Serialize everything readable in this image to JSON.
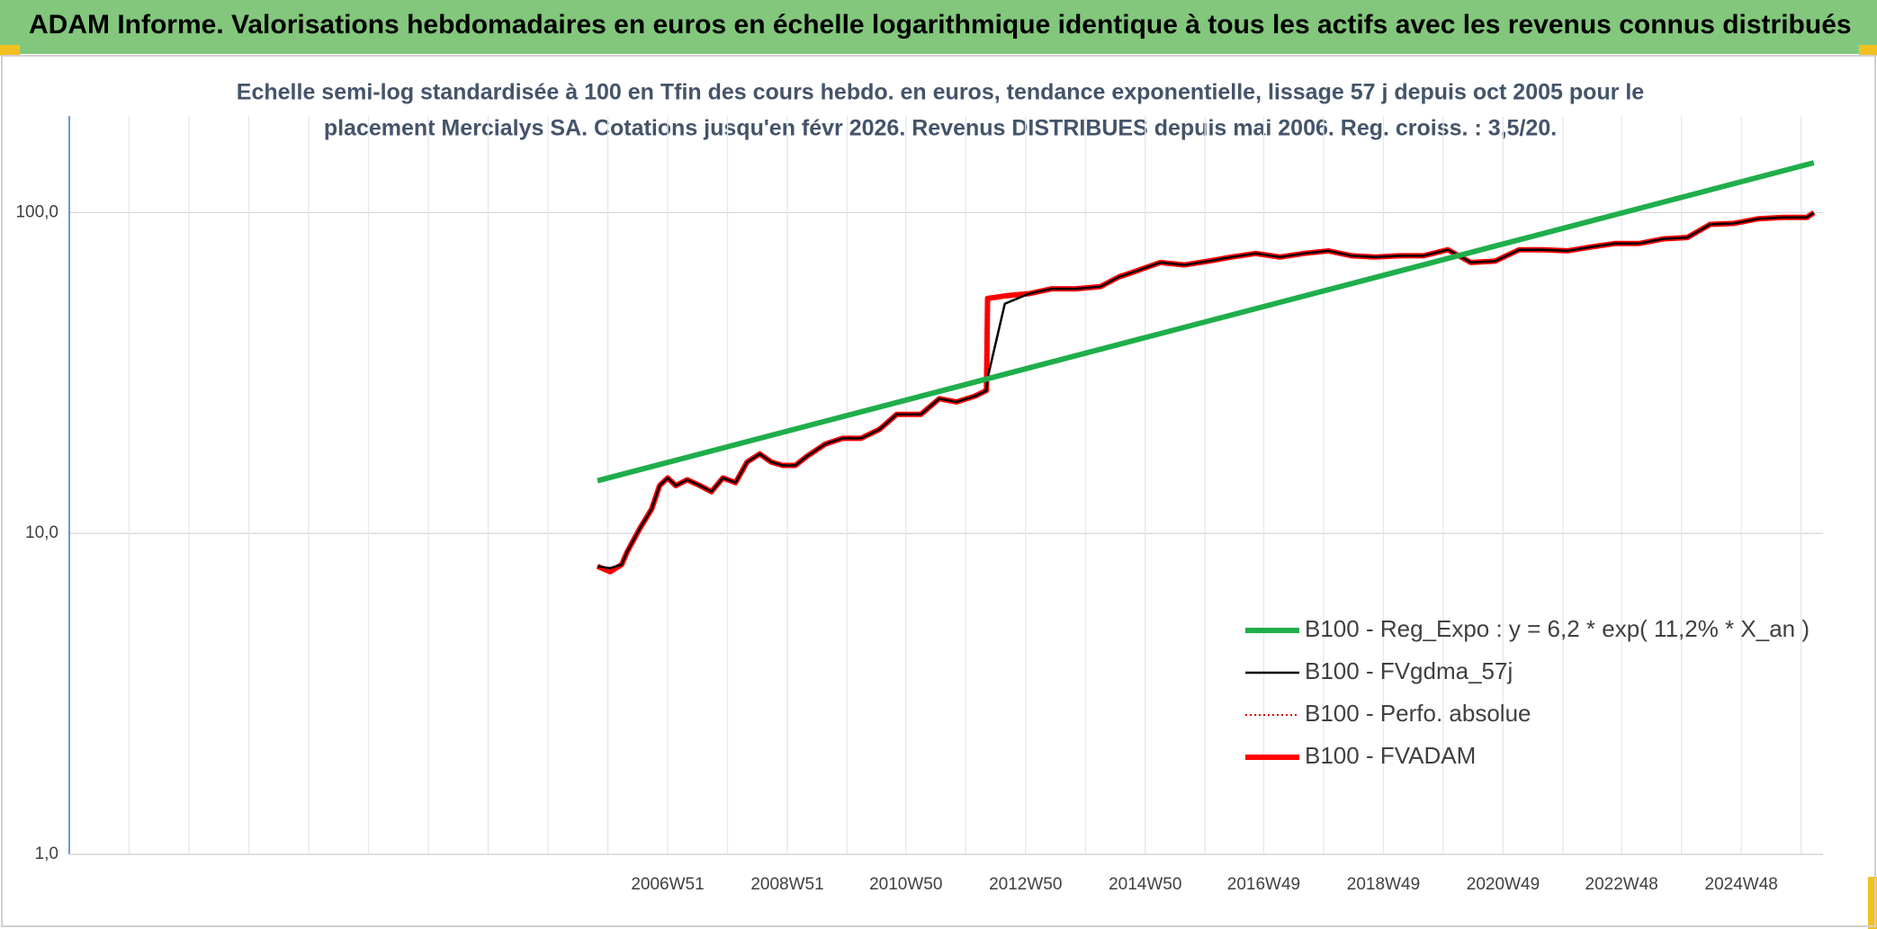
{
  "chart_data": {
    "type": "line",
    "title": "ADAM Informe. Valorisations hebdomadaires en euros en échelle logarithmique identique à tous les actifs avec les revenus connus distribués",
    "subtitle": [
      "Echelle semi-log standardisée à 100 en Tfin des cours hebdo. en euros, tendance exponentielle, lissage 57 j depuis oct 2005 pour le",
      "placement Mercialys SA. Cotations jusqu'en févr 2026. Revenus DISTRIBUES depuis mai 2006. Reg. croiss. : 3,5/20."
    ],
    "log_y": true,
    "grid": true,
    "legend": "lower right",
    "ylim": [
      1,
      200
    ],
    "yticks": [
      {
        "value": 1,
        "label": "1,0"
      },
      {
        "value": 10,
        "label": "10,0"
      },
      {
        "value": 100,
        "label": "100,0"
      }
    ],
    "xlim": [
      "1996W51",
      "2026W15"
    ],
    "xticks": [
      "2006W51",
      "2008W51",
      "2010W50",
      "2012W50",
      "2014W50",
      "2016W49",
      "2018W49",
      "2020W49",
      "2022W48",
      "2024W48"
    ],
    "xgrid": [
      "1997W51",
      "1998W51",
      "1999W51",
      "2000W51",
      "2001W51",
      "2002W51",
      "2003W51",
      "2004W51",
      "2005W51",
      "2007W51",
      "2009W51",
      "2011W50",
      "2013W50",
      "2015W50",
      "2017W49",
      "2019W49",
      "2021W49",
      "2023W48",
      "2025W48"
    ],
    "x": [
      "2005W42",
      "2006W01",
      "2006W11",
      "2006W16",
      "2006W27",
      "2006W37",
      "2006W44",
      "2006W51",
      "2007W06",
      "2007W16",
      "2007W27",
      "2007W37",
      "2007W47",
      "2008W06",
      "2008W16",
      "2008W27",
      "2008W37",
      "2008W47",
      "2009W06",
      "2009W16",
      "2009W32",
      "2009W47",
      "2010W11",
      "2010W27",
      "2010W42",
      "2011W11",
      "2011W27",
      "2011W42",
      "2012W06",
      "2012W16",
      "2012W17",
      "2012W32",
      "2013W01",
      "2013W21",
      "2013W42",
      "2014W11",
      "2014W27",
      "2014W42",
      "2015W11",
      "2015W32",
      "2016W01",
      "2016W21",
      "2016W42",
      "2017W11",
      "2017W32",
      "2018W01",
      "2018W21",
      "2018W42",
      "2019W11",
      "2019W32",
      "2020W01",
      "2020W21",
      "2020W42",
      "2021W11",
      "2021W32",
      "2022W01",
      "2022W21",
      "2022W42",
      "2023W11",
      "2023W32",
      "2024W01",
      "2024W21",
      "2024W42",
      "2025W11",
      "2025W32",
      "2026W01",
      "2026W07"
    ],
    "series": [
      {
        "name": "B100 - Reg_Expo : y = 6,2 * exp( 11,2% *  X_an )",
        "color": "#1fae4b",
        "linestyle": "solid",
        "x": [
          "2005W42",
          "2026W07"
        ],
        "values": [
          14.6,
          143
        ]
      },
      {
        "name": "B100 - FVgdma_57j",
        "color": "#000000",
        "linestyle": "solid",
        "values": [
          7.9,
          7.8,
          8.0,
          8.8,
          10.4,
          11.9,
          14.1,
          14.9,
          14.1,
          14.7,
          14.1,
          13.5,
          14.9,
          14.4,
          16.7,
          17.7,
          16.7,
          16.3,
          16.3,
          17.4,
          19.0,
          19.8,
          19.8,
          21.1,
          23.5,
          23.5,
          26.3,
          25.7,
          26.8,
          27.9,
          30.5,
          52.0,
          55.9,
          57.9,
          57.9,
          58.8,
          63.0,
          65.7,
          69.9,
          68.7,
          70.6,
          72.7,
          74.6,
          72.7,
          74.6,
          76.0,
          73.4,
          72.7,
          73.4,
          73.4,
          76.6,
          69.9,
          70.6,
          76.6,
          76.6,
          76.0,
          78.1,
          80.1,
          80.1,
          82.8,
          83.6,
          91.9,
          92.6,
          95.7,
          96.6,
          96.6,
          100
        ]
      },
      {
        "name": "B100 - Perfo. absolue",
        "color": "#e00000",
        "linestyle": "dotted",
        "values": [
          7.9,
          7.6,
          8.0,
          8.8,
          10.4,
          11.9,
          14.1,
          14.9,
          14.1,
          14.7,
          14.1,
          13.5,
          14.9,
          14.4,
          16.7,
          17.7,
          16.7,
          16.3,
          16.3,
          17.4,
          19.0,
          19.8,
          19.8,
          21.1,
          23.5,
          23.5,
          26.3,
          25.7,
          26.8,
          27.9,
          54.0,
          55.0,
          55.9,
          57.9,
          57.9,
          58.8,
          63.0,
          65.7,
          69.9,
          68.7,
          70.6,
          72.7,
          74.6,
          72.7,
          74.6,
          76.0,
          73.4,
          72.7,
          73.4,
          73.4,
          76.6,
          69.9,
          70.6,
          76.6,
          76.6,
          76.0,
          78.1,
          80.1,
          80.1,
          82.8,
          83.6,
          91.9,
          92.6,
          95.7,
          96.6,
          96.6,
          100
        ]
      },
      {
        "name": "B100 - FVADAM",
        "color": "#ff0000",
        "linestyle": "solid",
        "values": [
          7.9,
          7.6,
          8.0,
          8.8,
          10.4,
          11.9,
          14.1,
          14.9,
          14.1,
          14.7,
          14.1,
          13.5,
          14.9,
          14.4,
          16.7,
          17.7,
          16.7,
          16.3,
          16.3,
          17.4,
          19.0,
          19.8,
          19.8,
          21.1,
          23.5,
          23.5,
          26.3,
          25.7,
          26.8,
          27.9,
          54.0,
          55.0,
          55.9,
          57.9,
          57.9,
          58.8,
          63.0,
          65.7,
          69.9,
          68.7,
          70.6,
          72.7,
          74.6,
          72.7,
          74.6,
          76.0,
          73.4,
          72.7,
          73.4,
          73.4,
          76.6,
          69.9,
          70.6,
          76.6,
          76.6,
          76.0,
          78.1,
          80.1,
          80.1,
          82.8,
          83.6,
          91.9,
          92.6,
          95.7,
          96.6,
          96.6,
          100
        ]
      }
    ]
  }
}
